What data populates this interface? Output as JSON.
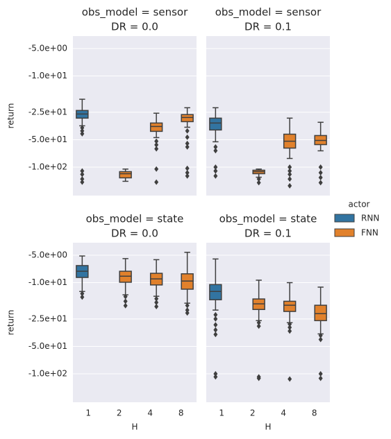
{
  "chart_data": [
    {
      "type": "box",
      "title": [
        "obs_model = sensor",
        "DR = 0.0"
      ],
      "ylabel": "return",
      "yscale": "log",
      "categories": [
        "1",
        "2",
        "4",
        "8"
      ],
      "ylim": [
        -3.65,
        -205
      ],
      "grid": true,
      "yticks": [
        {
          "value": -5,
          "label": "-5.0e+00"
        },
        {
          "value": -10,
          "label": "-1.0e+01"
        },
        {
          "value": -25,
          "label": "-2.5e+01"
        },
        {
          "value": -50,
          "label": "-5.0e+01"
        },
        {
          "value": -100,
          "label": "-1.0e+02"
        }
      ],
      "series": [
        {
          "name": "RNN",
          "color": "#3274a1",
          "boxes": [
            {
              "whislo": -35.2,
              "q1": -29,
              "med": -26.1,
              "q3": -23.9,
              "whishi": -18,
              "fliers": [
                -37,
                -40,
                -43,
                -110,
                -120,
                -135,
                -146
              ]
            },
            null,
            null,
            null
          ]
        },
        {
          "name": "FNN",
          "color": "#e1812c",
          "boxes": [
            null,
            {
              "whislo": -143,
              "q1": -131,
              "med": -118,
              "q3": -112,
              "whishi": -105,
              "fliers": []
            },
            {
              "whislo": -47.4,
              "q1": -40.5,
              "med": -35.8,
              "q3": -32.8,
              "whishi": -25.6,
              "fliers": [
                -52,
                -57,
                -63,
                -105,
                -146
              ]
            },
            {
              "whislo": -36.5,
              "q1": -31.7,
              "med": -28.5,
              "q3": -26.5,
              "whishi": -22.3,
              "fliers": [
                -40,
                -47,
                -55,
                -60,
                -103,
                -115,
                -125
              ]
            }
          ]
        }
      ]
    },
    {
      "type": "box",
      "title": [
        "obs_model = sensor",
        "DR = 0.1"
      ],
      "yscale": "log",
      "categories": [
        "1",
        "2",
        "4",
        "8"
      ],
      "ylim": [
        -3.65,
        -205
      ],
      "grid": true,
      "yticks": [
        -5,
        -10,
        -25,
        -50,
        -100
      ],
      "series": [
        {
          "name": "RNN",
          "color": "#3274a1",
          "boxes": [
            {
              "whislo": -52.7,
              "q1": -39.1,
              "med": -32.8,
              "q3": -29,
              "whishi": -22.3,
              "fliers": [
                -60,
                -66,
                -100,
                -110,
                -125
              ]
            },
            null,
            null,
            null
          ]
        },
        {
          "name": "FNN",
          "color": "#e1812c",
          "boxes": [
            null,
            {
              "whislo": -129,
              "q1": -118,
              "med": -112,
              "q3": -108,
              "whishi": -105,
              "fliers": [
                -135,
                -148
              ]
            },
            {
              "whislo": -80.3,
              "q1": -61.8,
              "med": -52,
              "q3": -43.5,
              "whishi": -29,
              "fliers": [
                -100,
                -110,
                -120,
                -135,
                -160
              ]
            },
            {
              "whislo": -66.2,
              "q1": -56.6,
              "med": -50.9,
              "q3": -45,
              "whishi": -32.2,
              "fliers": [
                -100,
                -115,
                -130,
                -148
              ]
            }
          ]
        }
      ]
    },
    {
      "type": "box",
      "title": [
        "obs_model = state",
        "DR = 0.0"
      ],
      "ylabel": "return",
      "xlabel": "H",
      "yscale": "log",
      "categories": [
        "1",
        "2",
        "4",
        "8"
      ],
      "ylim": [
        -3.65,
        -205
      ],
      "grid": true,
      "yticks": [
        {
          "value": -5,
          "label": "-5.0e+00"
        },
        {
          "value": -10,
          "label": "-1.0e+01"
        },
        {
          "value": -25,
          "label": "-2.5e+01"
        },
        {
          "value": -50,
          "label": "-5.0e+01"
        },
        {
          "value": -100,
          "label": "-1.0e+02"
        }
      ],
      "series": [
        {
          "name": "RNN",
          "color": "#3274a1",
          "boxes": [
            {
              "whislo": -12.5,
              "q1": -8.77,
              "med": -7.5,
              "q3": -6.5,
              "whishi": -5.1,
              "fliers": [
                -13.2,
                -14.4
              ]
            },
            null,
            null,
            null
          ]
        },
        {
          "name": "FNN",
          "color": "#e1812c",
          "boxes": [
            null,
            {
              "whislo": -13.6,
              "q1": -9.9,
              "med": -8.5,
              "q3": -7.5,
              "whishi": -5.45,
              "fliers": [
                -14.2,
                -16,
                -17.9
              ]
            },
            {
              "whislo": -14.1,
              "q1": -10.6,
              "med": -9.1,
              "q3": -7.9,
              "whishi": -5.6,
              "fliers": [
                -15,
                -16.5,
                -18.3
              ]
            },
            {
              "whislo": -16.8,
              "q1": -11.8,
              "med": -9.6,
              "q3": -8,
              "whishi": -4.65,
              "fliers": [
                -17.8,
                -20,
                -21.5
              ]
            }
          ]
        }
      ]
    },
    {
      "type": "box",
      "title": [
        "obs_model = state",
        "DR = 0.1"
      ],
      "xlabel": "H",
      "yscale": "log",
      "categories": [
        "1",
        "2",
        "4",
        "8"
      ],
      "ylim": [
        -3.65,
        -205
      ],
      "grid": true,
      "yticks": [
        -5,
        -10,
        -25,
        -50,
        -100
      ],
      "series": [
        {
          "name": "RNN",
          "color": "#3274a1",
          "boxes": [
            {
              "whislo": -20,
              "q1": -15.4,
              "med": -12.5,
              "q3": -10.5,
              "whishi": -5.5,
              "fliers": [
                -22.5,
                -25,
                -29,
                -33,
                -37,
                -100,
                -108
              ]
            },
            null,
            null,
            null
          ]
        },
        {
          "name": "FNN",
          "color": "#e1812c",
          "boxes": [
            null,
            {
              "whislo": -26.1,
              "q1": -19.7,
              "med": -17.1,
              "q3": -15.1,
              "whishi": -9.4,
              "fliers": [
                -27.5,
                -30,
                -108,
                -112
              ]
            },
            {
              "whislo": -27.5,
              "q1": -20.7,
              "med": -17.7,
              "q3": -16,
              "whishi": -10,
              "fliers": [
                -28.5,
                -31,
                -34,
                -114
              ]
            },
            {
              "whislo": -36.5,
              "q1": -26.1,
              "med": -21.9,
              "q3": -17.7,
              "whishi": -11.2,
              "fliers": [
                -38,
                -42,
                -100,
                -112
              ]
            }
          ]
        }
      ]
    }
  ],
  "legend": {
    "title": "actor",
    "position": "right"
  }
}
